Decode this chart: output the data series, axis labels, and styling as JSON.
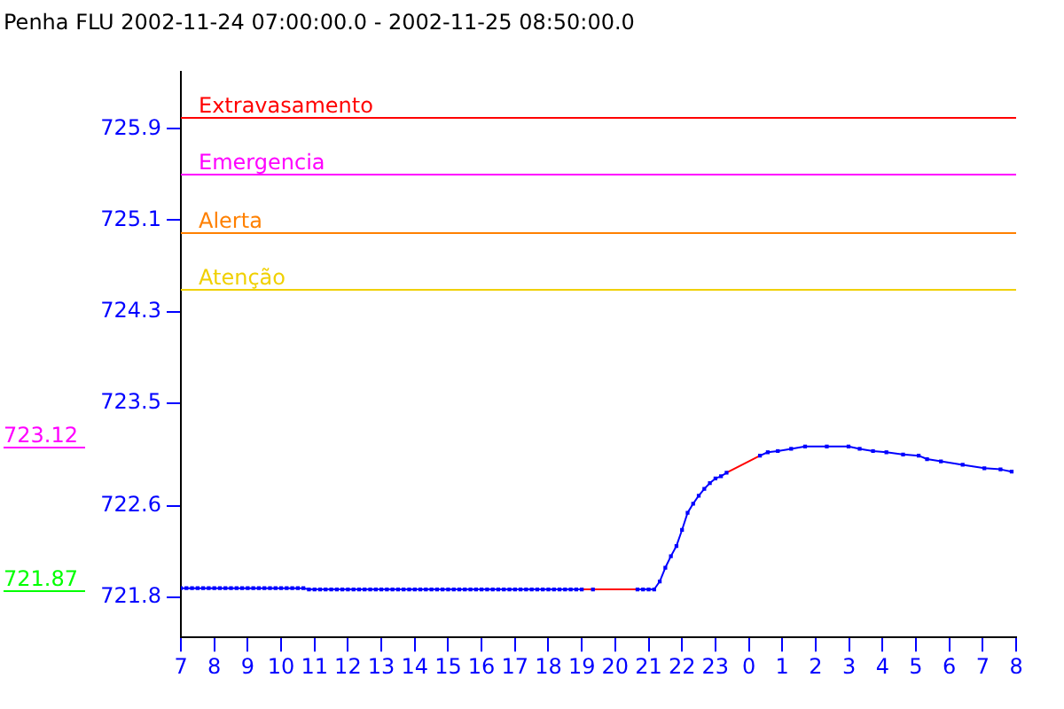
{
  "chart_data": {
    "type": "line",
    "title": "Penha FLU 2002-11-24 07:00:00.0 - 2002-11-25 08:50:00.0",
    "xlim": [
      "2002-11-24T07:00",
      "2002-11-25T08:00"
    ],
    "xticks": [
      {
        "value": "2002-11-24T07:00",
        "label": "7"
      },
      {
        "value": "2002-11-24T08:00",
        "label": "8"
      },
      {
        "value": "2002-11-24T09:00",
        "label": "9"
      },
      {
        "value": "2002-11-24T10:00",
        "label": "10"
      },
      {
        "value": "2002-11-24T11:00",
        "label": "11"
      },
      {
        "value": "2002-11-24T12:00",
        "label": "12"
      },
      {
        "value": "2002-11-24T13:00",
        "label": "13"
      },
      {
        "value": "2002-11-24T14:00",
        "label": "14"
      },
      {
        "value": "2002-11-24T15:00",
        "label": "15"
      },
      {
        "value": "2002-11-24T16:00",
        "label": "16"
      },
      {
        "value": "2002-11-24T17:00",
        "label": "17"
      },
      {
        "value": "2002-11-24T18:00",
        "label": "18"
      },
      {
        "value": "2002-11-24T19:00",
        "label": "19"
      },
      {
        "value": "2002-11-24T20:00",
        "label": "20"
      },
      {
        "value": "2002-11-24T21:00",
        "label": "21"
      },
      {
        "value": "2002-11-24T22:00",
        "label": "22"
      },
      {
        "value": "2002-11-24T23:00",
        "label": "23"
      },
      {
        "value": "2002-11-25T00:00",
        "label": "0"
      },
      {
        "value": "2002-11-25T01:00",
        "label": "1"
      },
      {
        "value": "2002-11-25T02:00",
        "label": "2"
      },
      {
        "value": "2002-11-25T03:00",
        "label": "3"
      },
      {
        "value": "2002-11-25T04:00",
        "label": "4"
      },
      {
        "value": "2002-11-25T05:00",
        "label": "5"
      },
      {
        "value": "2002-11-25T06:00",
        "label": "6"
      },
      {
        "value": "2002-11-25T07:00",
        "label": "7"
      },
      {
        "value": "2002-11-25T08:00",
        "label": "8"
      }
    ],
    "ylim": [
      721.45,
      726.4
    ],
    "yticks": [
      721.8,
      722.6,
      723.5,
      724.3,
      725.1,
      725.9
    ],
    "grid": false,
    "legend": false,
    "marker": "square",
    "series": [
      {
        "color": "#0000ff",
        "x": [
          "2002-11-24T07:00",
          "2002-11-24T07:10",
          "2002-11-24T07:20",
          "2002-11-24T07:30",
          "2002-11-24T07:40",
          "2002-11-24T07:50",
          "2002-11-24T08:00",
          "2002-11-24T08:10",
          "2002-11-24T08:20",
          "2002-11-24T08:30",
          "2002-11-24T08:40",
          "2002-11-24T08:50",
          "2002-11-24T09:00",
          "2002-11-24T09:10",
          "2002-11-24T09:20",
          "2002-11-24T09:30",
          "2002-11-24T09:40",
          "2002-11-24T09:50",
          "2002-11-24T10:00",
          "2002-11-24T10:10",
          "2002-11-24T10:20",
          "2002-11-24T10:30",
          "2002-11-24T10:40",
          "2002-11-24T10:50",
          "2002-11-24T11:00",
          "2002-11-24T11:10",
          "2002-11-24T11:20",
          "2002-11-24T11:30",
          "2002-11-24T11:40",
          "2002-11-24T11:50",
          "2002-11-24T12:00",
          "2002-11-24T12:10",
          "2002-11-24T12:20",
          "2002-11-24T12:30",
          "2002-11-24T12:40",
          "2002-11-24T12:50",
          "2002-11-24T13:00",
          "2002-11-24T13:10",
          "2002-11-24T13:20",
          "2002-11-24T13:30",
          "2002-11-24T13:40",
          "2002-11-24T13:50",
          "2002-11-24T14:00",
          "2002-11-24T14:10",
          "2002-11-24T14:20",
          "2002-11-24T14:30",
          "2002-11-24T14:40",
          "2002-11-24T14:50",
          "2002-11-24T15:00",
          "2002-11-24T15:10",
          "2002-11-24T15:20",
          "2002-11-24T15:30",
          "2002-11-24T15:40",
          "2002-11-24T15:50",
          "2002-11-24T16:00",
          "2002-11-24T16:10",
          "2002-11-24T16:20",
          "2002-11-24T16:30",
          "2002-11-24T16:40",
          "2002-11-24T16:50",
          "2002-11-24T17:00",
          "2002-11-24T17:10",
          "2002-11-24T17:20",
          "2002-11-24T17:30",
          "2002-11-24T17:40",
          "2002-11-24T17:50",
          "2002-11-24T18:00",
          "2002-11-24T18:10",
          "2002-11-24T18:20",
          "2002-11-24T18:30",
          "2002-11-24T18:40",
          "2002-11-24T18:50",
          "2002-11-24T19:00",
          "2002-11-24T19:10",
          "2002-11-24T19:20",
          "2002-11-24T19:30",
          "2002-11-24T20:40",
          "2002-11-24T20:50",
          "2002-11-24T21:00",
          "2002-11-24T21:10",
          "2002-11-24T21:20",
          "2002-11-24T21:30",
          "2002-11-24T21:40",
          "2002-11-24T21:50",
          "2002-11-24T22:00",
          "2002-11-24T22:10",
          "2002-11-24T22:20",
          "2002-11-24T22:30",
          "2002-11-24T22:40",
          "2002-11-24T22:50",
          "2002-11-24T23:00",
          "2002-11-24T23:10",
          "2002-11-24T23:20",
          "2002-11-24T23:50",
          "2002-11-25T00:20",
          "2002-11-25T00:34",
          "2002-11-25T00:52",
          "2002-11-25T01:16",
          "2002-11-25T01:41",
          "2002-11-25T02:20",
          "2002-11-25T02:59",
          "2002-11-25T03:19",
          "2002-11-25T03:43",
          "2002-11-25T04:07",
          "2002-11-25T04:37",
          "2002-11-25T05:05",
          "2002-11-25T05:20",
          "2002-11-25T05:45",
          "2002-11-25T06:24",
          "2002-11-25T07:03",
          "2002-11-25T07:32",
          "2002-11-25T07:52"
        ],
        "values": [
          721.88,
          721.88,
          721.88,
          721.88,
          721.88,
          721.88,
          721.88,
          721.88,
          721.88,
          721.88,
          721.88,
          721.88,
          721.88,
          721.88,
          721.88,
          721.88,
          721.88,
          721.88,
          721.88,
          721.88,
          721.88,
          721.88,
          721.88,
          721.87,
          721.87,
          721.87,
          721.87,
          721.87,
          721.87,
          721.87,
          721.87,
          721.87,
          721.87,
          721.87,
          721.87,
          721.87,
          721.87,
          721.87,
          721.87,
          721.87,
          721.87,
          721.87,
          721.87,
          721.87,
          721.87,
          721.87,
          721.87,
          721.87,
          721.87,
          721.87,
          721.87,
          721.87,
          721.87,
          721.87,
          721.87,
          721.87,
          721.87,
          721.87,
          721.87,
          721.87,
          721.87,
          721.87,
          721.87,
          721.87,
          721.87,
          721.87,
          721.87,
          721.87,
          721.87,
          721.87,
          721.87,
          721.87,
          721.87,
          null,
          721.87,
          null,
          721.87,
          721.87,
          721.87,
          721.87,
          721.94,
          722.06,
          722.16,
          722.25,
          722.39,
          722.54,
          722.62,
          722.69,
          722.75,
          722.8,
          722.84,
          722.86,
          722.89,
          null,
          723.04,
          723.07,
          723.08,
          723.1,
          723.12,
          723.12,
          723.12,
          723.1,
          723.08,
          723.07,
          723.05,
          723.04,
          723.01,
          722.99,
          722.96,
          722.93,
          722.92,
          722.9
        ]
      },
      {
        "color": "#ff0000",
        "marker": "none",
        "x": [
          "2002-11-24T19:00",
          "2002-11-24T20:40",
          "2002-11-24T22:00",
          "2002-11-24T23:20",
          "2002-11-25T00:20"
        ],
        "values": [
          721.87,
          721.87,
          null,
          722.89,
          723.04
        ]
      }
    ],
    "ref_lines": [
      {
        "axis": "y",
        "value": 726.0,
        "label": "Extravasamento",
        "color": "#ff0000"
      },
      {
        "axis": "y",
        "value": 725.5,
        "label": "Emergencia",
        "color": "#ff00ff"
      },
      {
        "axis": "y",
        "value": 725.0,
        "label": "Alerta",
        "color": "#ff8000"
      },
      {
        "axis": "y",
        "value": 724.5,
        "label": "Atenção",
        "color": "#f0d000"
      },
      {
        "axis": "y",
        "value": 723.12,
        "label": "723.12",
        "color": "#ff00ff"
      },
      {
        "axis": "y",
        "value": 721.87,
        "label": "721.87",
        "color": "#00ff00"
      }
    ]
  }
}
